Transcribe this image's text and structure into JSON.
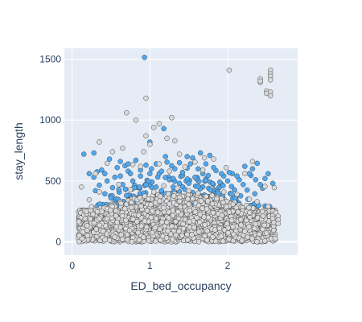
{
  "chart_data": {
    "type": "scatter",
    "title": "",
    "xlabel": "ED_bed_occupancy",
    "ylabel": "stay_length",
    "xlim": [
      -0.1,
      2.9
    ],
    "ylim": [
      -110,
      1590
    ],
    "xticks": [
      0,
      1,
      2
    ],
    "xtick_labels": [
      "0",
      "1",
      "2"
    ],
    "yticks": [
      0,
      500,
      1000,
      1500
    ],
    "ytick_labels": [
      "0",
      "500",
      "1000",
      "1500"
    ],
    "grid": true,
    "legend": "none",
    "colors": {
      "plot_bg": "#e5ecf6",
      "grid": "#ffffff",
      "gray_marker": "#d9d9d9",
      "blue_marker": "#4fa8f0",
      "outline": "#444444"
    },
    "series": [
      {
        "color": "blue",
        "points": [
          [
            0.93,
            1515
          ],
          [
            1.18,
            930
          ],
          [
            1.0,
            820
          ],
          [
            1.65,
            730
          ],
          [
            0.48,
            680
          ],
          [
            0.62,
            660
          ],
          [
            0.82,
            670
          ],
          [
            1.22,
            655
          ],
          [
            1.55,
            690
          ],
          [
            1.77,
            710
          ],
          [
            2.22,
            620
          ],
          [
            2.38,
            645
          ],
          [
            0.38,
            590
          ],
          [
            0.72,
            580
          ],
          [
            1.02,
            600
          ],
          [
            1.32,
            600
          ],
          [
            1.48,
            605
          ],
          [
            1.85,
            585
          ],
          [
            2.06,
            560
          ],
          [
            2.52,
            560
          ],
          [
            0.28,
            530
          ],
          [
            0.55,
            530
          ],
          [
            0.88,
            540
          ],
          [
            1.12,
            560
          ],
          [
            1.42,
            545
          ],
          [
            1.95,
            540
          ],
          [
            2.3,
            545
          ],
          [
            0.45,
            500
          ],
          [
            0.78,
            500
          ],
          [
            0.98,
            500
          ],
          [
            1.25,
            510
          ],
          [
            1.6,
            515
          ],
          [
            1.72,
            505
          ],
          [
            2.15,
            510
          ],
          [
            0.35,
            465
          ],
          [
            0.65,
            470
          ],
          [
            0.95,
            470
          ],
          [
            1.38,
            480
          ],
          [
            1.5,
            480
          ],
          [
            1.9,
            490
          ],
          [
            2.42,
            470
          ],
          [
            0.52,
            445
          ],
          [
            0.8,
            445
          ],
          [
            1.08,
            450
          ],
          [
            1.3,
            450
          ],
          [
            1.62,
            455
          ],
          [
            2.05,
            455
          ],
          [
            2.45,
            440
          ],
          [
            0.3,
            420
          ],
          [
            0.6,
            430
          ],
          [
            1.15,
            420
          ],
          [
            1.45,
            430
          ],
          [
            1.78,
            425
          ],
          [
            2.25,
            425
          ],
          [
            0.42,
            395
          ],
          [
            0.92,
            400
          ],
          [
            1.2,
            395
          ],
          [
            1.55,
            405
          ],
          [
            1.88,
            400
          ],
          [
            2.35,
            395
          ],
          [
            0.7,
            380
          ],
          [
            1.05,
            385
          ],
          [
            1.35,
            380
          ],
          [
            1.7,
            385
          ],
          [
            0.5,
            360
          ],
          [
            0.85,
            365
          ],
          [
            1.25,
            360
          ],
          [
            1.65,
            365
          ],
          [
            2.1,
            360
          ],
          [
            1.45,
            350
          ],
          [
            0.22,
            560
          ],
          [
            0.32,
            575
          ],
          [
            0.58,
            610
          ],
          [
            0.68,
            625
          ],
          [
            0.95,
            630
          ],
          [
            1.08,
            640
          ],
          [
            1.28,
            625
          ],
          [
            1.38,
            650
          ],
          [
            1.52,
            640
          ],
          [
            1.62,
            600
          ],
          [
            1.82,
            610
          ],
          [
            1.92,
            560
          ],
          [
            2.02,
            570
          ],
          [
            2.12,
            540
          ],
          [
            2.32,
            600
          ],
          [
            2.48,
            520
          ],
          [
            0.62,
            540
          ],
          [
            0.75,
            560
          ],
          [
            1.15,
            580
          ],
          [
            1.42,
            570
          ],
          [
            1.68,
            560
          ],
          [
            0.42,
            560
          ],
          [
            1.0,
            560
          ],
          [
            1.3,
            520
          ],
          [
            1.58,
            530
          ],
          [
            1.75,
            545
          ],
          [
            2.0,
            500
          ],
          [
            2.2,
            470
          ],
          [
            2.58,
            480
          ],
          [
            0.88,
            590
          ],
          [
            1.48,
            700
          ],
          [
            2.36,
            510
          ],
          [
            2.28,
            560
          ],
          [
            0.15,
            720
          ],
          [
            0.28,
            730
          ],
          [
            0.72,
            640
          ],
          [
            1.2,
            700
          ],
          [
            1.72,
            640
          ]
        ]
      },
      {
        "color": "gray",
        "points": [
          [
            2.02,
            1410
          ],
          [
            2.42,
            1340
          ],
          [
            2.42,
            1310
          ],
          [
            2.42,
            1320
          ],
          [
            2.55,
            1410
          ],
          [
            2.55,
            1380
          ],
          [
            2.55,
            1360
          ],
          [
            2.55,
            1330
          ],
          [
            2.5,
            1240
          ],
          [
            2.5,
            1220
          ],
          [
            2.55,
            1230
          ],
          [
            2.55,
            1200
          ],
          [
            0.95,
            1180
          ],
          [
            0.7,
            1060
          ],
          [
            0.82,
            1000
          ],
          [
            1.12,
            970
          ],
          [
            1.28,
            1020
          ],
          [
            1.05,
            940
          ],
          [
            0.95,
            870
          ],
          [
            1.22,
            850
          ],
          [
            1.0,
            800
          ],
          [
            1.32,
            830
          ],
          [
            0.65,
            770
          ],
          [
            0.35,
            820
          ],
          [
            0.52,
            740
          ],
          [
            0.92,
            740
          ],
          [
            1.38,
            720
          ],
          [
            1.7,
            690
          ],
          [
            1.82,
            680
          ],
          [
            2.32,
            660
          ],
          [
            0.45,
            645
          ],
          [
            0.78,
            635
          ],
          [
            1.12,
            640
          ],
          [
            1.58,
            655
          ],
          [
            1.98,
            610
          ],
          [
            2.22,
            560
          ],
          [
            0.3,
            560
          ],
          [
            0.88,
            620
          ],
          [
            1.25,
            580
          ],
          [
            1.45,
            615
          ],
          [
            1.68,
            590
          ],
          [
            2.48,
            455
          ],
          [
            2.6,
            445
          ],
          [
            0.12,
            450
          ],
          [
            0.22,
            345
          ],
          [
            0.18,
            250
          ],
          [
            0.25,
            290
          ],
          [
            0.35,
            410
          ],
          [
            0.6,
            470
          ],
          [
            0.75,
            430
          ],
          [
            1.05,
            410
          ],
          [
            1.18,
            460
          ],
          [
            1.35,
            440
          ],
          [
            1.5,
            420
          ],
          [
            1.62,
            400
          ],
          [
            1.8,
            380
          ],
          [
            1.95,
            410
          ],
          [
            2.12,
            390
          ],
          [
            2.28,
            350
          ],
          [
            2.38,
            330
          ],
          [
            2.52,
            290
          ],
          [
            2.62,
            240
          ],
          [
            2.65,
            210
          ],
          [
            2.65,
            180
          ],
          [
            2.65,
            150
          ]
        ]
      }
    ],
    "dense_band": {
      "x_range": [
        0.08,
        2.62
      ],
      "y_base": [
        0,
        260
      ],
      "upper_lobe": {
        "x_center": 1.35,
        "x_halfwidth": 1.05,
        "y_max": 400
      },
      "color": "gray"
    }
  }
}
